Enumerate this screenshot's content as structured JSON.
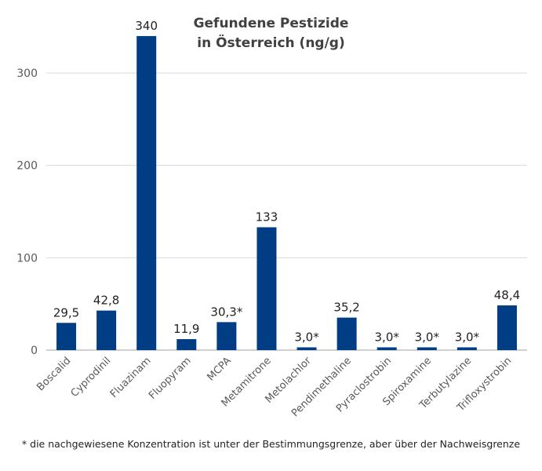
{
  "chart_data": {
    "type": "bar",
    "title_lines": [
      "Gefundene Pestizide",
      "in Österreich (ng/g)"
    ],
    "categories": [
      "Boscalid",
      "Cyprodinil",
      "Fluazinam",
      "Fluopyram",
      "MCPA",
      "Metamitrone",
      "Metolachlor",
      "Pendimethaline",
      "Pyraclostrobin",
      "Spiroxamine",
      "Terbutylazine",
      "Trifloxystrobin"
    ],
    "values": [
      29.5,
      42.8,
      340,
      11.9,
      30.3,
      133,
      3.0,
      35.2,
      3.0,
      3.0,
      3.0,
      48.4
    ],
    "data_labels": [
      "29,5",
      "42,8",
      "340",
      "11,9",
      "30,3*",
      "133",
      "3,0*",
      "35,2",
      "3,0*",
      "3,0*",
      "3,0*",
      "48,4"
    ],
    "yticks": [
      0,
      100,
      200,
      300
    ],
    "ylim": [
      0,
      340
    ],
    "grid": true,
    "legend": "none",
    "bar_color": "#003d85",
    "xlabel": "",
    "ylabel": ""
  },
  "footnote": "* die nachgewiesene Konzentration ist unter der Bestimmungsgrenze, aber über der Nachweisgrenze"
}
